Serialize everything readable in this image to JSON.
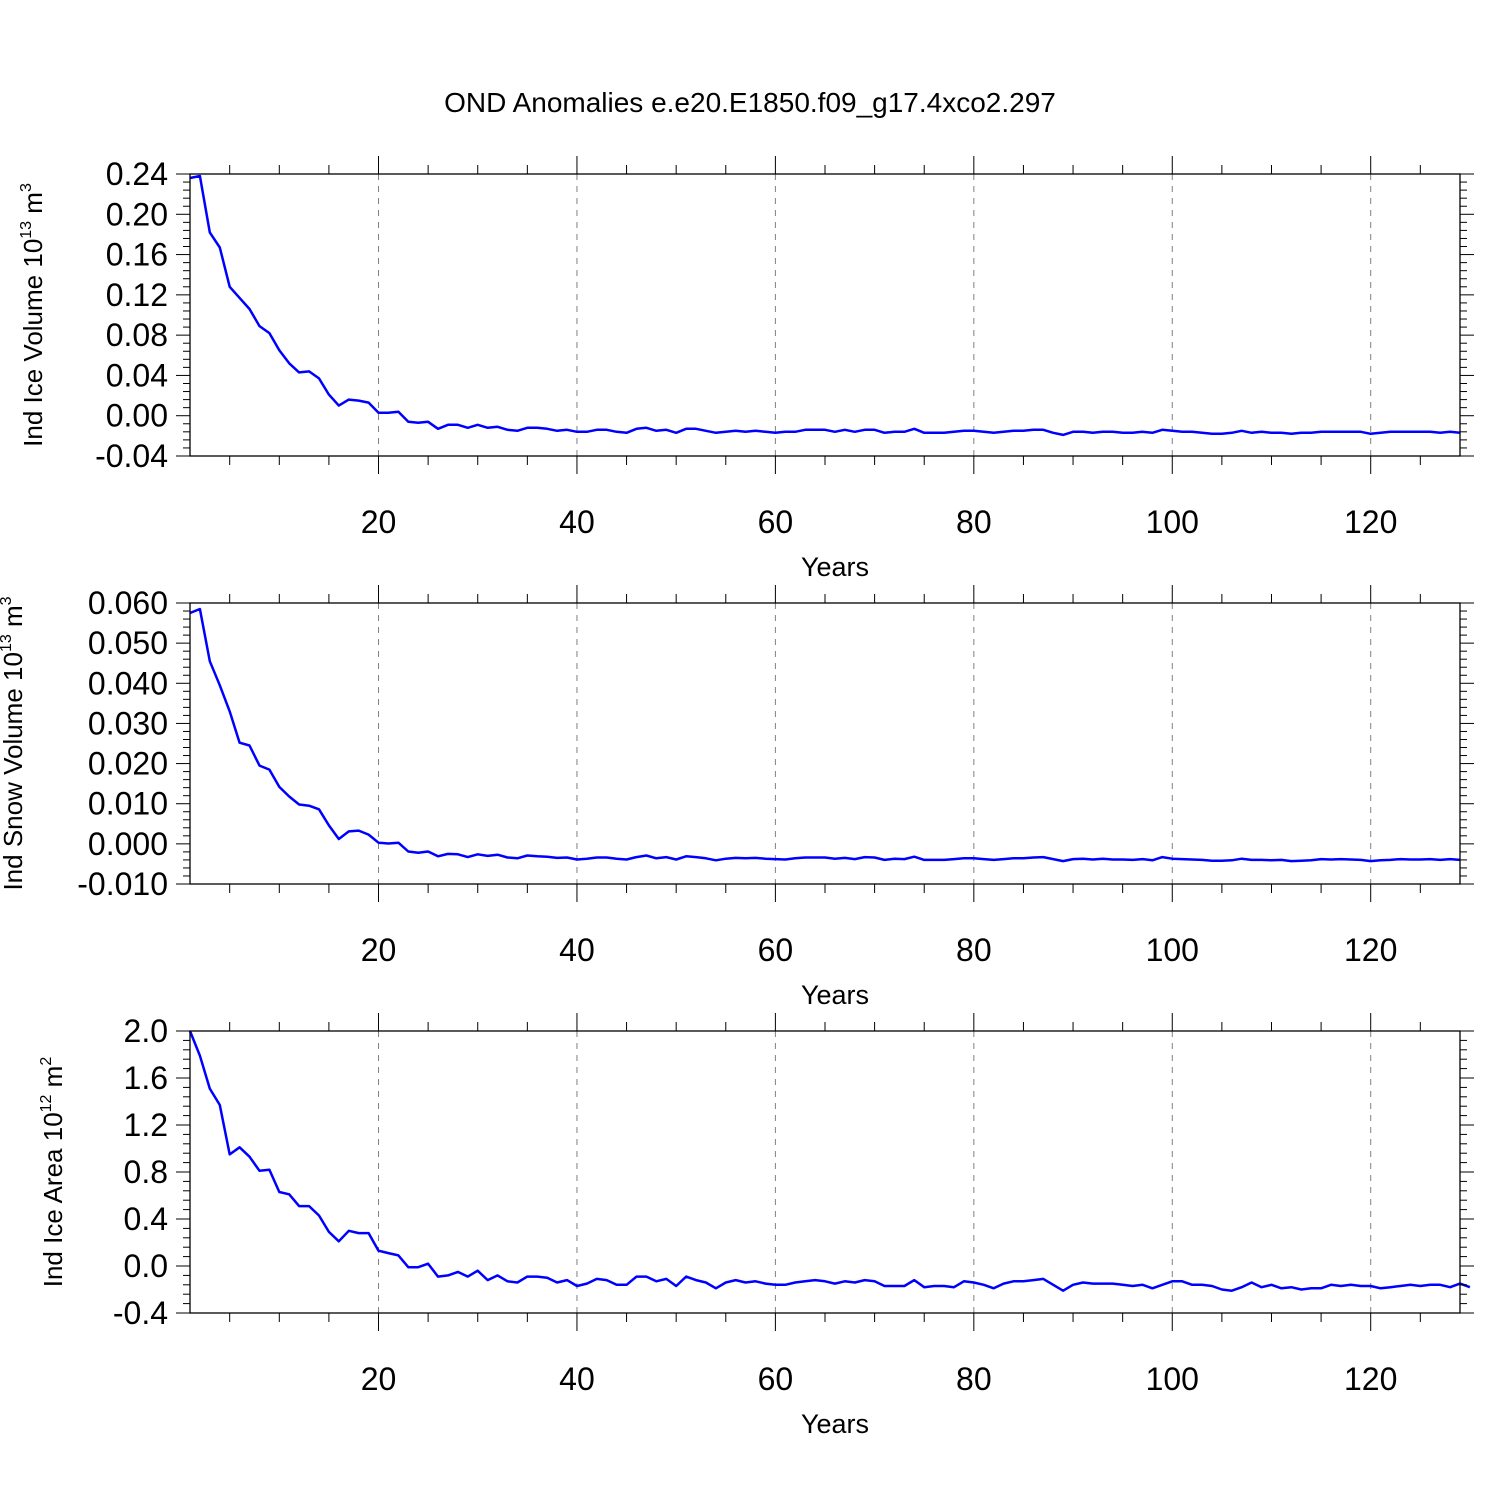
{
  "figure": {
    "title": "OND Anomalies e.e20.E1850.f09_g17.4xco2.297"
  },
  "colors": {
    "line": "#0000ff",
    "axis": "#000000",
    "grid": "#808080",
    "background": "#ffffff"
  },
  "chart_data": [
    {
      "type": "line",
      "title": "",
      "ylabel": {
        "base": "Ind Ice Volume 10",
        "exp": "13",
        "unit": " m",
        "unit_exp": "3"
      },
      "xlabel": "Years",
      "xlim": [
        1,
        129
      ],
      "ylim": [
        -0.04,
        0.24
      ],
      "yticks": [
        -0.04,
        0.0,
        0.04,
        0.08,
        0.12,
        0.16,
        0.2,
        0.24
      ],
      "ytick_labels": [
        "-0.04",
        "0.00",
        "0.04",
        "0.08",
        "0.12",
        "0.16",
        "0.20",
        "0.24"
      ],
      "xticks": [
        20,
        40,
        60,
        80,
        100,
        120
      ],
      "xtick_labels": [
        "20",
        "40",
        "60",
        "80",
        "100",
        "120"
      ],
      "grid": "vertical dashed at major x ticks",
      "series": [
        {
          "x_start": 1,
          "values": [
            0.236,
            0.238,
            0.182,
            0.167,
            0.128,
            0.117,
            0.106,
            0.089,
            0.082,
            0.065,
            0.052,
            0.043,
            0.044,
            0.037,
            0.021,
            0.01,
            0.016,
            0.015,
            0.013,
            0.003,
            0.003,
            0.004,
            -0.006,
            -0.007,
            -0.006,
            -0.013,
            -0.009,
            -0.009,
            -0.012,
            -0.009,
            -0.012,
            -0.011,
            -0.014,
            -0.015,
            -0.012,
            -0.012,
            -0.013,
            -0.015,
            -0.014,
            -0.016,
            -0.016,
            -0.014,
            -0.014,
            -0.016,
            -0.017,
            -0.013,
            -0.012,
            -0.015,
            -0.014,
            -0.017,
            -0.013,
            -0.013,
            -0.015,
            -0.017,
            -0.016,
            -0.015,
            -0.016,
            -0.015,
            -0.016,
            -0.017,
            -0.016,
            -0.016,
            -0.014,
            -0.014,
            -0.014,
            -0.016,
            -0.014,
            -0.016,
            -0.014,
            -0.014,
            -0.017,
            -0.016,
            -0.016,
            -0.013,
            -0.017,
            -0.017,
            -0.017,
            -0.016,
            -0.015,
            -0.015,
            -0.016,
            -0.017,
            -0.016,
            -0.015,
            -0.015,
            -0.014,
            -0.014,
            -0.017,
            -0.019,
            -0.016,
            -0.016,
            -0.017,
            -0.016,
            -0.016,
            -0.017,
            -0.017,
            -0.016,
            -0.017,
            -0.014,
            -0.015,
            -0.016,
            -0.016,
            -0.017,
            -0.018,
            -0.018,
            -0.017,
            -0.015,
            -0.017,
            -0.016,
            -0.017,
            -0.017,
            -0.018,
            -0.017,
            -0.017,
            -0.016,
            -0.016,
            -0.016,
            -0.016,
            -0.016,
            -0.018,
            -0.017,
            -0.016,
            -0.016,
            -0.016,
            -0.016,
            -0.016,
            -0.017,
            -0.016,
            -0.017
          ]
        }
      ]
    },
    {
      "type": "line",
      "title": "",
      "ylabel": {
        "base": "Ind Snow Volume 10",
        "exp": "13",
        "unit": " m",
        "unit_exp": "3"
      },
      "xlabel": "Years",
      "xlim": [
        1,
        129
      ],
      "ylim": [
        -0.01,
        0.06
      ],
      "yticks": [
        -0.01,
        0.0,
        0.01,
        0.02,
        0.03,
        0.04,
        0.05,
        0.06
      ],
      "ytick_labels": [
        "-0.010",
        "0.000",
        "0.010",
        "0.020",
        "0.030",
        "0.040",
        "0.050",
        "0.060"
      ],
      "xticks": [
        20,
        40,
        60,
        80,
        100,
        120
      ],
      "xtick_labels": [
        "20",
        "40",
        "60",
        "80",
        "100",
        "120"
      ],
      "grid": "vertical dashed at major x ticks",
      "series": [
        {
          "x_start": 1,
          "values": [
            0.0575,
            0.0585,
            0.0455,
            0.0395,
            0.033,
            0.0252,
            0.0245,
            0.0195,
            0.0185,
            0.0142,
            0.0118,
            0.0098,
            0.0095,
            0.0086,
            0.0046,
            0.0012,
            0.0031,
            0.0033,
            0.0023,
            0.0003,
            0.0001,
            0.0003,
            -0.0019,
            -0.0022,
            -0.0019,
            -0.0031,
            -0.0025,
            -0.0026,
            -0.0033,
            -0.0026,
            -0.003,
            -0.0027,
            -0.0034,
            -0.0036,
            -0.0029,
            -0.0031,
            -0.0032,
            -0.0035,
            -0.0034,
            -0.0039,
            -0.0037,
            -0.0034,
            -0.0034,
            -0.0037,
            -0.0039,
            -0.0033,
            -0.0029,
            -0.0036,
            -0.0033,
            -0.0039,
            -0.0031,
            -0.0033,
            -0.0036,
            -0.0041,
            -0.0037,
            -0.0035,
            -0.0036,
            -0.0035,
            -0.0037,
            -0.0038,
            -0.0039,
            -0.0036,
            -0.0034,
            -0.0034,
            -0.0034,
            -0.0037,
            -0.0035,
            -0.0038,
            -0.0033,
            -0.0034,
            -0.004,
            -0.0037,
            -0.0038,
            -0.0032,
            -0.004,
            -0.004,
            -0.004,
            -0.0038,
            -0.0036,
            -0.0036,
            -0.0038,
            -0.004,
            -0.0038,
            -0.0036,
            -0.0036,
            -0.0034,
            -0.0033,
            -0.0038,
            -0.0043,
            -0.0038,
            -0.0037,
            -0.0039,
            -0.0037,
            -0.0039,
            -0.0039,
            -0.004,
            -0.0038,
            -0.0041,
            -0.0033,
            -0.0037,
            -0.0038,
            -0.0039,
            -0.004,
            -0.0042,
            -0.0042,
            -0.0041,
            -0.0037,
            -0.004,
            -0.004,
            -0.0041,
            -0.004,
            -0.0043,
            -0.0042,
            -0.0041,
            -0.0038,
            -0.0039,
            -0.0038,
            -0.0039,
            -0.004,
            -0.0043,
            -0.0041,
            -0.004,
            -0.0038,
            -0.0039,
            -0.0039,
            -0.0038,
            -0.004,
            -0.0038,
            -0.004
          ]
        }
      ]
    },
    {
      "type": "line",
      "title": "",
      "ylabel": {
        "base": "Ind Ice Area 10",
        "exp": "12",
        "unit": " m",
        "unit_exp": "2"
      },
      "xlabel": "Years",
      "xlim": [
        1,
        129
      ],
      "ylim": [
        -0.4,
        2.0
      ],
      "yticks": [
        -0.4,
        0.0,
        0.4,
        0.8,
        1.2,
        1.6,
        2.0
      ],
      "ytick_labels": [
        "-0.4",
        "0.0",
        "0.4",
        "0.8",
        "1.2",
        "1.6",
        "2.0"
      ],
      "xticks": [
        20,
        40,
        60,
        80,
        100,
        120
      ],
      "xtick_labels": [
        "20",
        "40",
        "60",
        "80",
        "100",
        "120"
      ],
      "grid": "vertical dashed at major x ticks",
      "series": [
        {
          "x_start": 1,
          "values": [
            2.0,
            1.79,
            1.51,
            1.37,
            0.95,
            1.01,
            0.93,
            0.81,
            0.82,
            0.63,
            0.61,
            0.51,
            0.51,
            0.43,
            0.29,
            0.21,
            0.3,
            0.28,
            0.28,
            0.13,
            0.11,
            0.09,
            -0.01,
            -0.01,
            0.02,
            -0.09,
            -0.08,
            -0.05,
            -0.09,
            -0.04,
            -0.12,
            -0.08,
            -0.13,
            -0.14,
            -0.09,
            -0.09,
            -0.1,
            -0.14,
            -0.12,
            -0.17,
            -0.15,
            -0.11,
            -0.12,
            -0.16,
            -0.16,
            -0.09,
            -0.09,
            -0.13,
            -0.11,
            -0.17,
            -0.09,
            -0.12,
            -0.14,
            -0.19,
            -0.14,
            -0.12,
            -0.14,
            -0.13,
            -0.15,
            -0.16,
            -0.16,
            -0.14,
            -0.13,
            -0.12,
            -0.13,
            -0.15,
            -0.13,
            -0.14,
            -0.12,
            -0.13,
            -0.17,
            -0.17,
            -0.17,
            -0.12,
            -0.18,
            -0.17,
            -0.17,
            -0.18,
            -0.13,
            -0.14,
            -0.16,
            -0.19,
            -0.15,
            -0.13,
            -0.13,
            -0.12,
            -0.11,
            -0.16,
            -0.21,
            -0.16,
            -0.14,
            -0.15,
            -0.15,
            -0.15,
            -0.16,
            -0.17,
            -0.16,
            -0.19,
            -0.16,
            -0.13,
            -0.13,
            -0.16,
            -0.16,
            -0.17,
            -0.2,
            -0.21,
            -0.18,
            -0.14,
            -0.18,
            -0.16,
            -0.19,
            -0.18,
            -0.2,
            -0.19,
            -0.19,
            -0.16,
            -0.17,
            -0.16,
            -0.17,
            -0.17,
            -0.19,
            -0.18,
            -0.17,
            -0.16,
            -0.17,
            -0.16,
            -0.16,
            -0.18,
            -0.15,
            -0.18
          ]
        }
      ]
    }
  ]
}
